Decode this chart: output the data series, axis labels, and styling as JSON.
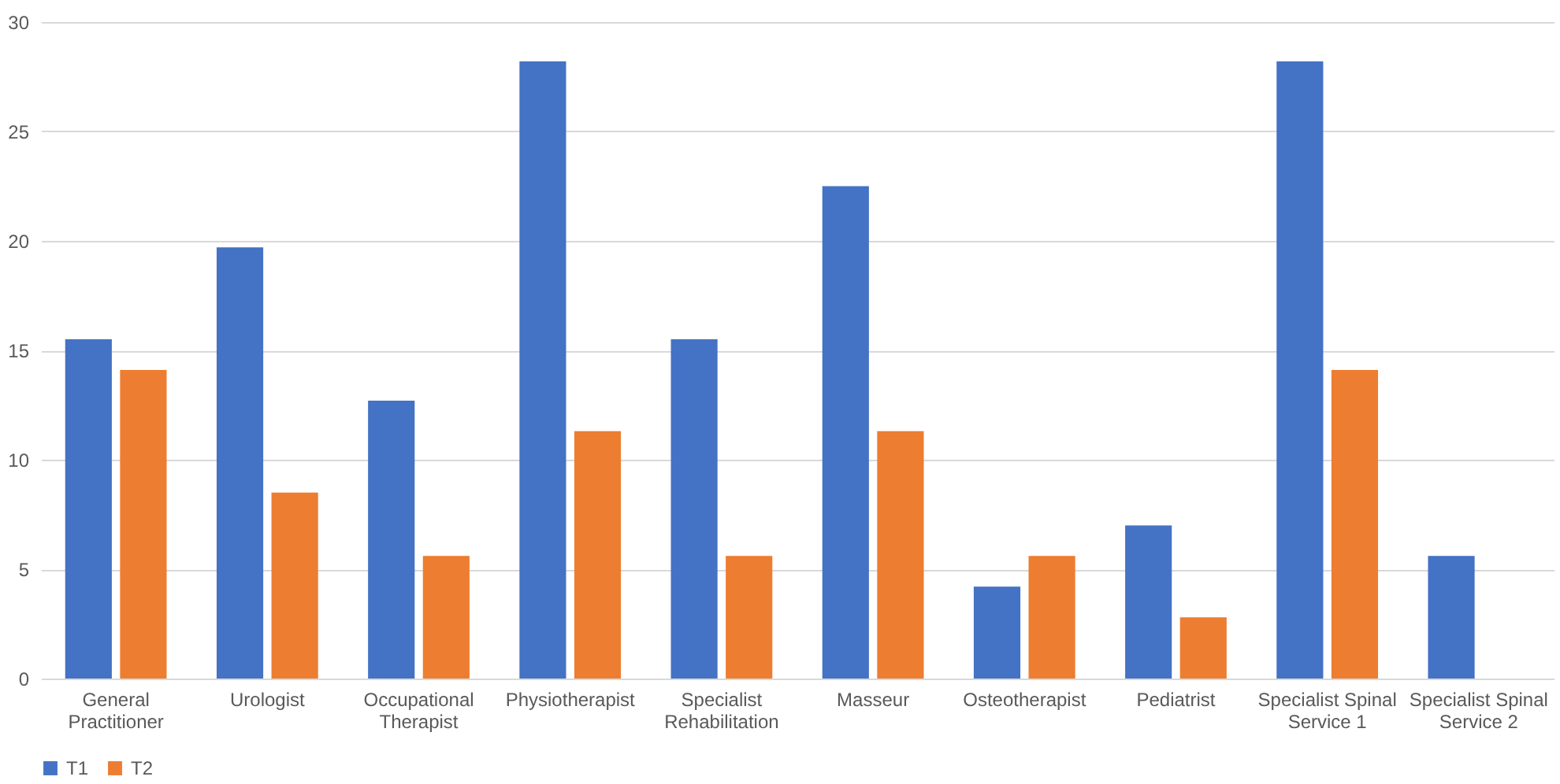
{
  "chart_data": {
    "type": "bar",
    "categories": [
      "General Practitioner",
      "Urologist",
      "Occupational Therapist",
      "Physiotherapist",
      "Specialist Rehabilitation",
      "Masseur",
      "Osteotherapist",
      "Pediatrist",
      "Specialist Spinal Service 1",
      "Specialist Spinal Service 2"
    ],
    "series": [
      {
        "name": "T1",
        "color": "#4472c4",
        "values": [
          15.5,
          19.7,
          12.7,
          28.2,
          15.5,
          22.5,
          4.2,
          7.0,
          28.2,
          5.6
        ]
      },
      {
        "name": "T2",
        "color": "#ed7d31",
        "values": [
          14.1,
          8.5,
          5.6,
          11.3,
          5.6,
          11.3,
          5.6,
          2.8,
          14.1,
          0
        ]
      }
    ],
    "ylim": [
      0,
      30
    ],
    "yticks": [
      0,
      5,
      10,
      15,
      20,
      25,
      30
    ],
    "grid": "y",
    "legend": "bottom"
  }
}
